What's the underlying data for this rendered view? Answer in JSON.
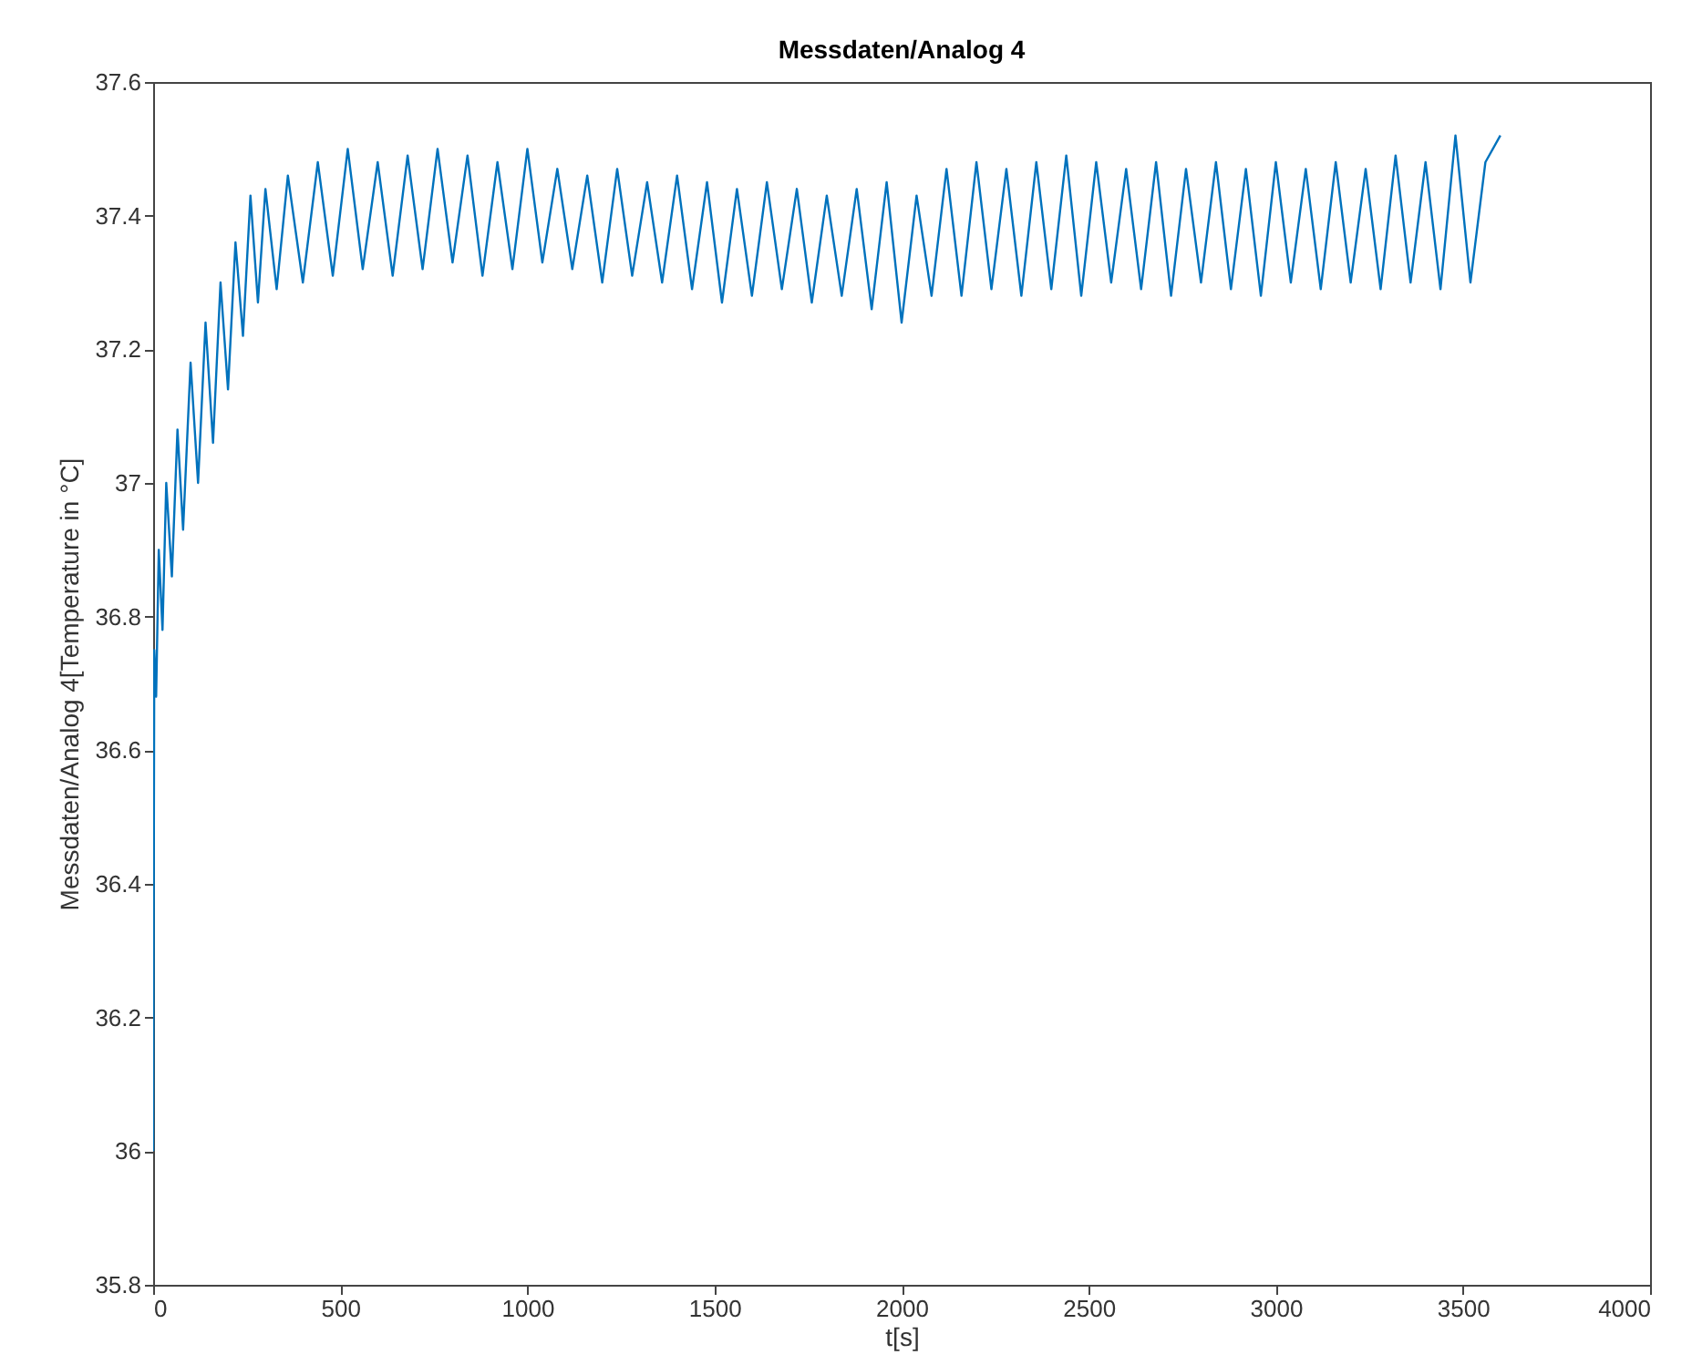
{
  "chart_data": {
    "type": "line",
    "title": "Messdaten/Analog 4",
    "xlabel": "t[s]",
    "ylabel": "Messdaten/Analog 4[Temperature in °C]",
    "x": [
      0,
      3,
      8,
      15,
      25,
      35,
      50,
      65,
      80,
      100,
      120,
      140,
      160,
      180,
      200,
      220,
      240,
      260,
      280,
      300,
      330,
      360,
      400,
      440,
      480,
      520,
      560,
      600,
      640,
      680,
      720,
      760,
      800,
      840,
      880,
      920,
      960,
      1000,
      1040,
      1080,
      1120,
      1160,
      1200,
      1240,
      1280,
      1320,
      1360,
      1400,
      1440,
      1480,
      1520,
      1560,
      1600,
      1640,
      1680,
      1720,
      1760,
      1800,
      1840,
      1880,
      1920,
      1960,
      2000,
      2040,
      2080,
      2120,
      2160,
      2200,
      2240,
      2280,
      2320,
      2360,
      2400,
      2440,
      2480,
      2520,
      2560,
      2600,
      2640,
      2680,
      2720,
      2760,
      2800,
      2840,
      2880,
      2920,
      2960,
      3000,
      3040,
      3080,
      3120,
      3160,
      3200,
      3240,
      3280,
      3320,
      3360,
      3400,
      3440,
      3480,
      3520,
      3560,
      3600
    ],
    "series": [
      {
        "color": "#0072bd",
        "values": [
          36.0,
          36.75,
          36.68,
          36.9,
          36.78,
          37.0,
          36.86,
          37.08,
          36.93,
          37.18,
          37.0,
          37.24,
          37.06,
          37.3,
          37.14,
          37.36,
          37.22,
          37.43,
          37.27,
          37.44,
          37.29,
          37.46,
          37.3,
          37.48,
          37.31,
          37.5,
          37.32,
          37.48,
          37.31,
          37.49,
          37.32,
          37.5,
          37.33,
          37.49,
          37.31,
          37.48,
          37.32,
          37.5,
          37.33,
          37.47,
          37.32,
          37.46,
          37.3,
          37.47,
          37.31,
          37.45,
          37.3,
          37.46,
          37.29,
          37.45,
          37.27,
          37.44,
          37.28,
          37.45,
          37.29,
          37.44,
          37.27,
          37.43,
          37.28,
          37.44,
          37.26,
          37.45,
          37.24,
          37.43,
          37.28,
          37.47,
          37.28,
          37.48,
          37.29,
          37.47,
          37.28,
          37.48,
          37.29,
          37.49,
          37.28,
          37.48,
          37.3,
          37.47,
          37.29,
          37.48,
          37.28,
          37.47,
          37.3,
          37.48,
          37.29,
          37.47,
          37.28,
          37.48,
          37.3,
          37.47,
          37.29,
          37.48,
          37.3,
          37.47,
          37.29,
          37.49,
          37.3,
          37.48,
          37.29,
          37.52,
          37.3,
          37.48,
          37.52
        ]
      }
    ],
    "xlim": [
      0,
      4000
    ],
    "xticks": [
      0,
      500,
      1000,
      1500,
      2000,
      2500,
      3000,
      3500,
      4000
    ],
    "ylim": [
      35.8,
      37.6
    ],
    "yticks": [
      35.8,
      36,
      36.2,
      36.4,
      36.6,
      36.8,
      37,
      37.2,
      37.4,
      37.6
    ],
    "grid": false
  }
}
